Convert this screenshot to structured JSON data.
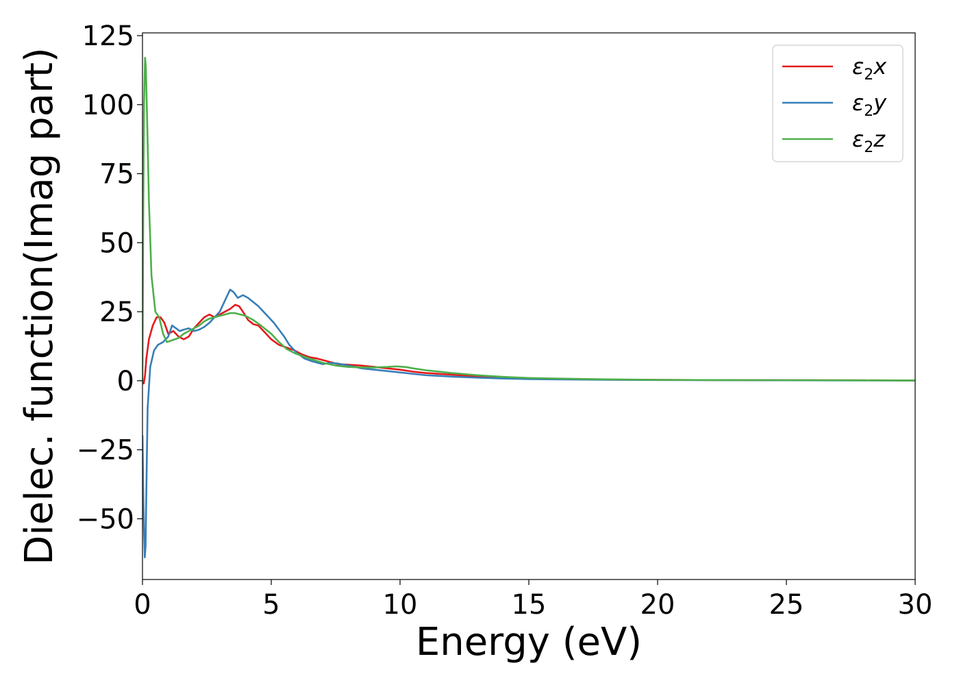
{
  "chart_data": {
    "type": "line",
    "xlabel": "Energy (eV)",
    "ylabel": "Dielec. function(Imag part)",
    "xlim": [
      0,
      30
    ],
    "ylim": [
      -72,
      126
    ],
    "xticks": [
      0,
      5,
      10,
      15,
      20,
      25,
      30
    ],
    "xtick_labels": [
      "0",
      "5",
      "10",
      "15",
      "20",
      "25",
      "30"
    ],
    "yticks": [
      -50,
      -25,
      0,
      25,
      50,
      75,
      100,
      125
    ],
    "ytick_labels": [
      "−50",
      "−25",
      "0",
      "25",
      "50",
      "75",
      "100",
      "125"
    ],
    "grid": false,
    "legend_position": "top-right",
    "series": [
      {
        "name": "ε2x",
        "legend_main": "ε",
        "legend_sub": "2",
        "legend_tail": "x",
        "color": "#e41a1c",
        "x": [
          0,
          0.05,
          0.1,
          0.15,
          0.25,
          0.4,
          0.55,
          0.7,
          0.85,
          1.0,
          1.2,
          1.4,
          1.6,
          1.8,
          2.0,
          2.2,
          2.4,
          2.6,
          2.8,
          3.0,
          3.2,
          3.4,
          3.6,
          3.75,
          3.9,
          4.1,
          4.3,
          4.5,
          4.7,
          5.0,
          5.3,
          5.6,
          5.9,
          6.2,
          6.5,
          6.8,
          7.2,
          7.6,
          8.0,
          8.5,
          9.0,
          9.5,
          10.0,
          10.5,
          11.0,
          12.0,
          13.0,
          14.0,
          15.0,
          16.0,
          18.0,
          20.0,
          22.0,
          25.0,
          28.0,
          30.0
        ],
        "y": [
          0,
          -1,
          2,
          8,
          15,
          20,
          23,
          23,
          21,
          17,
          18,
          16,
          15,
          16,
          19,
          21,
          23,
          24,
          23,
          24,
          25,
          26,
          27.5,
          27,
          25,
          22,
          20.5,
          20,
          18,
          15,
          13,
          12,
          11,
          9.5,
          8.5,
          8,
          7,
          6,
          5.8,
          5.5,
          5,
          4.5,
          4,
          3.3,
          2.8,
          2.2,
          1.5,
          1.0,
          0.8,
          0.6,
          0.4,
          0.3,
          0.25,
          0.2,
          0.15,
          0.1
        ]
      },
      {
        "name": "ε2y",
        "legend_main": "ε",
        "legend_sub": "2",
        "legend_tail": "y",
        "color": "#377eb8",
        "x": [
          0,
          0.03,
          0.06,
          0.09,
          0.12,
          0.15,
          0.2,
          0.3,
          0.45,
          0.6,
          0.8,
          1.0,
          1.15,
          1.3,
          1.45,
          1.6,
          1.8,
          2.0,
          2.2,
          2.4,
          2.6,
          2.8,
          3.0,
          3.2,
          3.4,
          3.55,
          3.7,
          3.9,
          4.1,
          4.3,
          4.5,
          4.7,
          4.9,
          5.1,
          5.3,
          5.5,
          5.7,
          6.0,
          6.3,
          6.6,
          7.0,
          7.3,
          7.6,
          8.0,
          8.5,
          9.0,
          9.5,
          10.0,
          10.5,
          11.0,
          12.0,
          13.0,
          14.0,
          15.0,
          16.0,
          18.0,
          20.0,
          22.0,
          25.0,
          28.0,
          30.0
        ],
        "y": [
          -20,
          -40,
          -55,
          -64,
          -60,
          -40,
          -10,
          5,
          11,
          13,
          14,
          16,
          20,
          19,
          18,
          18.5,
          19,
          18,
          18.5,
          19.5,
          21,
          23,
          25,
          29,
          33,
          32,
          30,
          31,
          30,
          28.5,
          27,
          25,
          23,
          21,
          18.5,
          16,
          13,
          10,
          8,
          7,
          6,
          6.5,
          6.2,
          5.5,
          4.5,
          4,
          3.5,
          3,
          2.5,
          2.0,
          1.5,
          1.1,
          0.8,
          0.6,
          0.5,
          0.35,
          0.25,
          0.2,
          0.15,
          0.1,
          0.08
        ]
      },
      {
        "name": "ε2z",
        "legend_main": "ε",
        "legend_sub": "2",
        "legend_tail": "z",
        "color": "#4daf4a",
        "x": [
          0,
          0.03,
          0.06,
          0.1,
          0.13,
          0.18,
          0.25,
          0.35,
          0.5,
          0.65,
          0.8,
          0.95,
          1.1,
          1.25,
          1.4,
          1.6,
          1.8,
          2.0,
          2.2,
          2.4,
          2.6,
          2.8,
          3.0,
          3.2,
          3.4,
          3.6,
          3.8,
          4.0,
          4.3,
          4.6,
          5.0,
          5.3,
          5.6,
          5.9,
          6.2,
          6.5,
          7.0,
          7.5,
          8.0,
          8.5,
          9.0,
          9.5,
          9.8,
          10.2,
          10.5,
          11.0,
          12.0,
          13.0,
          14.0,
          15.0,
          16.0,
          18.0,
          20.0,
          22.0,
          25.0,
          28.0,
          30.0
        ],
        "y": [
          0,
          60,
          100,
          117,
          114,
          95,
          65,
          38,
          25,
          23,
          17,
          14,
          14.5,
          15,
          15.5,
          17,
          18,
          19,
          20,
          21.5,
          22.5,
          23,
          23.5,
          24,
          24.5,
          24.5,
          24,
          23.5,
          22,
          20,
          17,
          14,
          11.5,
          10,
          9,
          8,
          6.5,
          5.5,
          5,
          4.8,
          4.8,
          5,
          5.2,
          5,
          4.5,
          3.8,
          2.8,
          2.0,
          1.4,
          1.0,
          0.8,
          0.5,
          0.3,
          0.25,
          0.2,
          0.15,
          0.1
        ]
      }
    ]
  }
}
